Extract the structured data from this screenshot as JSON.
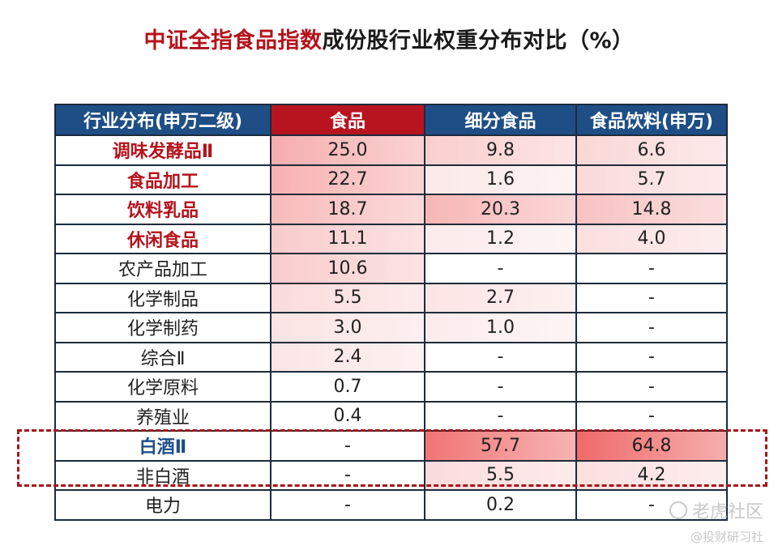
{
  "title": {
    "highlight": "中证全指食品指数",
    "rest": "成份股行业权重分布对比（%）"
  },
  "table": {
    "headers": [
      "行业分布(申万二级)",
      "食品",
      "细分食品",
      "食品饮料(申万)"
    ],
    "rows": [
      {
        "category": "调味发酵品Ⅱ",
        "style": "red",
        "values": [
          "25.0",
          "9.8",
          "6.6"
        ]
      },
      {
        "category": "食品加工",
        "style": "red",
        "values": [
          "22.7",
          "1.6",
          "5.7"
        ]
      },
      {
        "category": "饮料乳品",
        "style": "red",
        "values": [
          "18.7",
          "20.3",
          "14.8"
        ]
      },
      {
        "category": "休闲食品",
        "style": "red",
        "values": [
          "11.1",
          "1.2",
          "4.0"
        ]
      },
      {
        "category": "农产品加工",
        "style": "plain",
        "values": [
          "10.6",
          "-",
          "-"
        ]
      },
      {
        "category": "化学制品",
        "style": "plain",
        "values": [
          "5.5",
          "2.7",
          "-"
        ]
      },
      {
        "category": "化学制药",
        "style": "plain",
        "values": [
          "3.0",
          "1.0",
          "-"
        ]
      },
      {
        "category": "综合Ⅱ",
        "style": "plain",
        "values": [
          "2.4",
          "-",
          "-"
        ]
      },
      {
        "category": "化学原料",
        "style": "plain",
        "values": [
          "0.7",
          "-",
          "-"
        ]
      },
      {
        "category": "养殖业",
        "style": "plain",
        "values": [
          "0.4",
          "-",
          "-"
        ]
      },
      {
        "category": "白酒Ⅱ",
        "style": "blue",
        "values": [
          "-",
          "57.7",
          "64.8"
        ]
      },
      {
        "category": "非白酒",
        "style": "plain",
        "values": [
          "-",
          "5.5",
          "4.2"
        ]
      },
      {
        "category": "电力",
        "style": "plain",
        "values": [
          "-",
          "0.2",
          "-"
        ]
      }
    ]
  },
  "colors": {
    "heat_high": "#f06a6a",
    "heat_low": "#fdf3f3",
    "header_red": "#b8141f",
    "header_blue": "#1f4e86",
    "dash_box": "#a4161a"
  },
  "watermark": {
    "line1": "老虎社区",
    "line2": "@投财研习社"
  }
}
